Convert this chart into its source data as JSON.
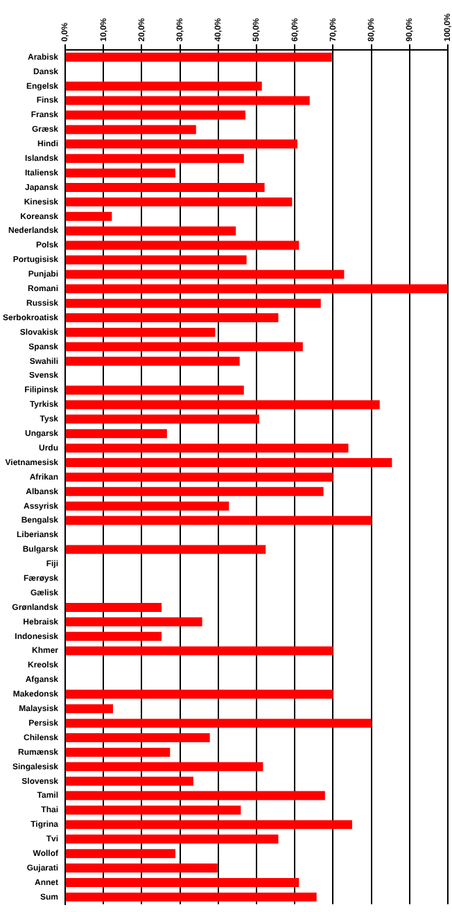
{
  "chart_data": {
    "type": "bar",
    "orientation": "horizontal",
    "color": "#ff0000",
    "grid": "x",
    "legend": false,
    "categories": [
      "Arabisk",
      "Dansk",
      "Engelsk",
      "Finsk",
      "Fransk",
      "Græsk",
      "Hindi",
      "Islandsk",
      "Italiensk",
      "Japansk",
      "Kinesisk",
      "Koreansk",
      "Nederlandsk",
      "Polsk",
      "Portugisisk",
      "Punjabi",
      "Romani",
      "Russisk",
      "Serbokroatisk",
      "Slovakisk",
      "Spansk",
      "Swahili",
      "Svensk",
      "Filipinsk",
      "Tyrkisk",
      "Tysk",
      "Ungarsk",
      "Urdu",
      "Vietnamesisk",
      "Afrikan",
      "Albansk",
      "Assyrisk",
      "Bengalsk",
      "Liberiansk",
      "Bulgarsk",
      "Fiji",
      "Færøysk",
      "Gælisk",
      "Grønlandsk",
      "Hebraisk",
      "Indonesisk",
      "Khmer",
      "Kreolsk",
      "Afgansk",
      "Makedonsk",
      "Malaysisk",
      "Persisk",
      "Chilensk",
      "Rumænsk",
      "Singalesisk",
      "Slovensk",
      "Tamil",
      "Thai",
      "Tigrina",
      "Tvi",
      "Wollof",
      "Gujarati",
      "Annet",
      "Sum"
    ],
    "values": [
      69.7,
      null,
      51.4,
      63.9,
      47.1,
      34.2,
      60.7,
      46.7,
      28.8,
      52.1,
      59.3,
      12.2,
      44.6,
      61.1,
      47.4,
      72.9,
      100,
      66.8,
      55.7,
      39.2,
      62.1,
      45.6,
      null,
      46.7,
      82.2,
      50.7,
      26.6,
      74.0,
      85.4,
      70,
      67.5,
      42.8,
      80,
      null,
      52.4,
      null,
      null,
      null,
      25.2,
      35.8,
      25.2,
      70,
      null,
      null,
      70,
      12.5,
      80,
      37.8,
      27.4,
      51.7,
      33.5,
      67.9,
      45.9,
      75.0,
      55.7,
      28.8,
      39.8,
      61.1,
      65.7
    ],
    "xlim": [
      0,
      100
    ],
    "xticks": [
      {
        "value": 0,
        "label": "0,0%"
      },
      {
        "value": 10,
        "label": "10,0%"
      },
      {
        "value": 20,
        "label": "20,0%"
      },
      {
        "value": 30,
        "label": "30,0%"
      },
      {
        "value": 40,
        "label": "40,0%"
      },
      {
        "value": 50,
        "label": "50,0%"
      },
      {
        "value": 60,
        "label": "60,0%"
      },
      {
        "value": 70,
        "label": "70,0%"
      },
      {
        "value": 80,
        "label": "80,0%"
      },
      {
        "value": 90,
        "label": "90,0%"
      },
      {
        "value": 100,
        "label": "100,0%"
      }
    ]
  }
}
